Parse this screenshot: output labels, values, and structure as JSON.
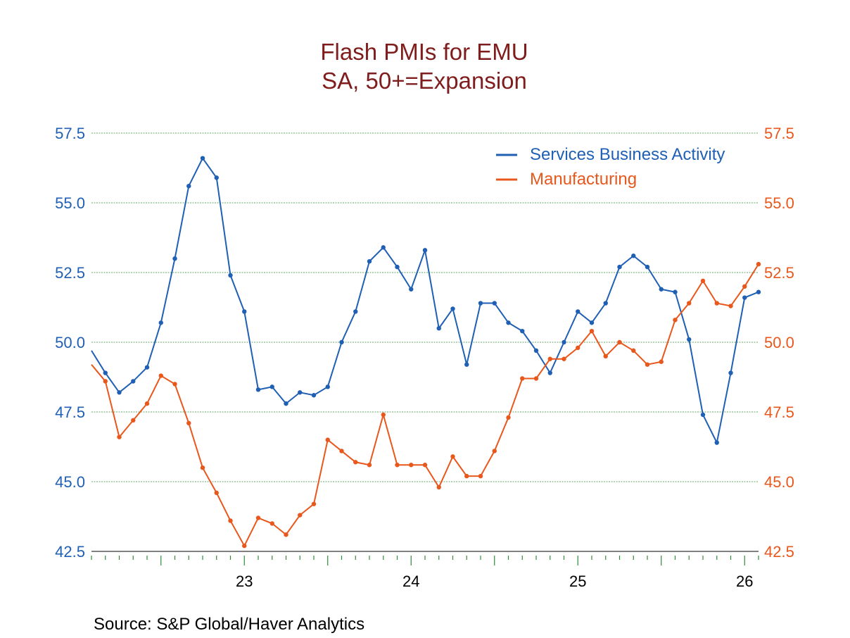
{
  "chart_data": {
    "type": "line",
    "title": "Flash PMIs for EMU",
    "subtitle": "SA, 50+=Expansion",
    "source": "Source:  S&P Global/Haver Analytics",
    "ylim": [
      42.5,
      57.5
    ],
    "yticks": [
      "57.5",
      "55.0",
      "52.5",
      "50.0",
      "47.5",
      "45.0",
      "42.5"
    ],
    "yticks_right": [
      "57.5",
      "55.0",
      "52.5",
      "50.0",
      "47.5",
      "45.0",
      "42.5"
    ],
    "x_tick_labels": [
      "23",
      "24",
      "25",
      "26"
    ],
    "x_start": "2022-02",
    "x_end": "2026-02",
    "grid": true,
    "legend_position": "top-right",
    "colors": {
      "services": "#1f5fb4",
      "manufacturing": "#e8571c",
      "title": "#7f1d1d",
      "grid": "#2e8b3a"
    },
    "series": [
      {
        "name": "Services Business Activity",
        "color": "#1f5fb4",
        "values": [
          49.7,
          48.9,
          48.2,
          48.6,
          49.1,
          50.7,
          53.0,
          55.6,
          56.6,
          55.9,
          52.4,
          51.1,
          48.3,
          48.4,
          47.8,
          48.2,
          48.1,
          48.4,
          50.0,
          51.1,
          52.9,
          53.4,
          52.7,
          51.9,
          53.3,
          50.5,
          51.2,
          49.2,
          51.4,
          51.4,
          50.7,
          50.4,
          49.7,
          48.9,
          50.0,
          51.1,
          50.7,
          51.4,
          52.7,
          53.1,
          52.7,
          51.9,
          51.8,
          50.1,
          47.4,
          46.4,
          48.9,
          51.6,
          51.8
        ]
      },
      {
        "name": "Manufacturing",
        "color": "#e8571c",
        "values": [
          49.2,
          48.6,
          46.6,
          47.2,
          47.8,
          48.8,
          48.5,
          47.1,
          45.5,
          44.6,
          43.6,
          42.7,
          43.7,
          43.5,
          43.1,
          43.8,
          44.2,
          46.5,
          46.1,
          45.7,
          45.6,
          47.4,
          45.6,
          45.6,
          45.6,
          44.8,
          45.9,
          45.2,
          45.2,
          46.1,
          47.3,
          48.7,
          48.7,
          49.4,
          49.4,
          49.8,
          50.4,
          49.5,
          50.0,
          49.7,
          49.2,
          49.3,
          50.8,
          51.4,
          52.2,
          51.4,
          51.3,
          52.0,
          52.8
        ]
      }
    ]
  }
}
